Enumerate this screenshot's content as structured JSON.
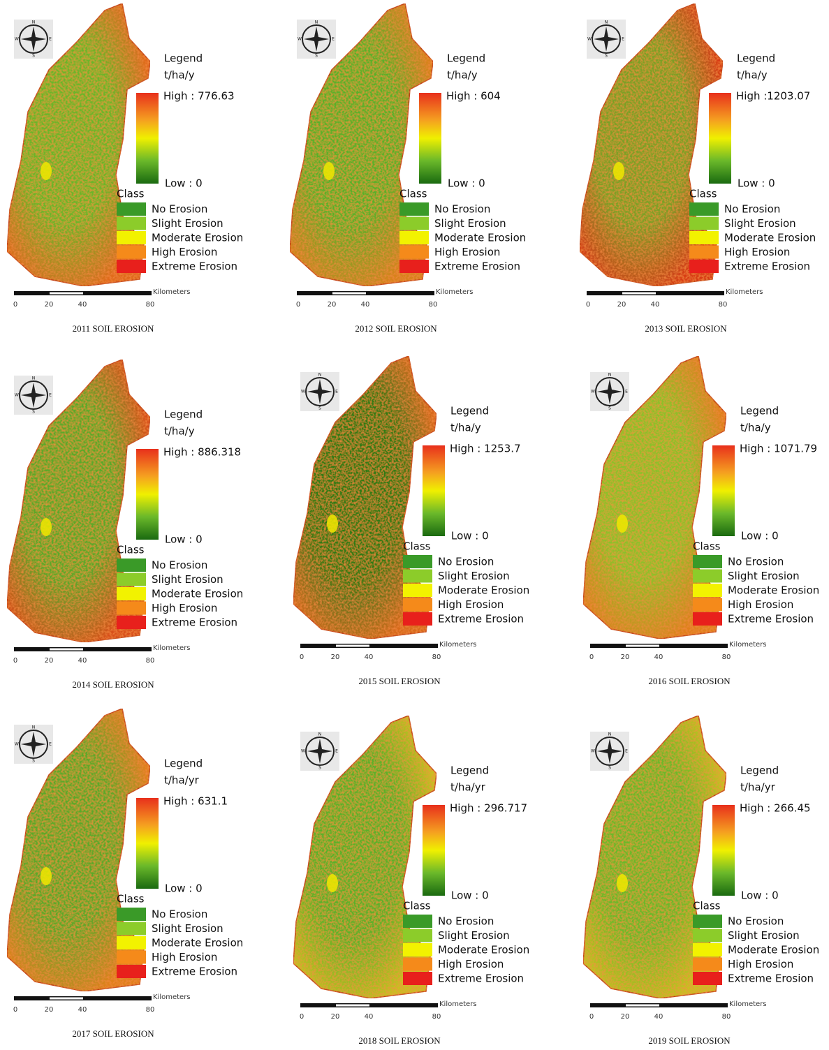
{
  "panels": [
    {
      "compass": [
        "N",
        "E",
        "S",
        "W"
      ],
      "legend_title": "Legend",
      "unit": "t/ha/y",
      "high": "High : 776.63",
      "low": "Low : 0",
      "class_title": "Class",
      "classes": [
        "No Erosion",
        "Slight Erosion",
        "Moderate Erosion",
        "High Erosion",
        "Extreme Erosion"
      ],
      "scale_unit": "Kilometers",
      "scale_ticks": [
        "0",
        "20",
        "40",
        "80"
      ],
      "caption": "2011 SOIL EROSION"
    },
    {
      "compass": [
        "N",
        "E",
        "S",
        "W"
      ],
      "legend_title": "Legend",
      "unit": "t/ha/y",
      "high": "High : 604",
      "low": "Low : 0",
      "class_title": "Class",
      "classes": [
        "No Erosion",
        "Slight Erosion",
        "Moderate Erosion",
        "High Erosion",
        "Extreme Erosion"
      ],
      "scale_unit": "Kilometers",
      "scale_ticks": [
        "0",
        "20",
        "40",
        "80"
      ],
      "caption": "2012 SOIL EROSION"
    },
    {
      "compass": [
        "N",
        "E",
        "S",
        "W"
      ],
      "legend_title": "Legend",
      "unit": "t/ha/y",
      "high": "High :1203.07",
      "low": "Low : 0",
      "class_title": "Class",
      "classes": [
        "No Erosion",
        "Slight Erosion",
        "Moderate Erosion",
        "High Erosion",
        "Extreme Erosion"
      ],
      "scale_unit": "Kilometers",
      "scale_ticks": [
        "0",
        "20",
        "40",
        "80"
      ],
      "caption": "2013 SOIL EROSION"
    },
    {
      "compass": [
        "N",
        "E",
        "S",
        "W"
      ],
      "legend_title": "Legend",
      "unit": "t/ha/y",
      "high": "High : 886.318",
      "low": "Low : 0",
      "class_title": "Class",
      "classes": [
        "No Erosion",
        "Slight Erosion",
        "Moderate Erosion",
        "High Erosion",
        "Extreme Erosion"
      ],
      "scale_unit": "Kilometers",
      "scale_ticks": [
        "0",
        "20",
        "40",
        "80"
      ],
      "caption": "2014 SOIL EROSION"
    },
    {
      "compass": [
        "N",
        "E",
        "S",
        "W"
      ],
      "legend_title": "Legend",
      "unit": "t/ha/y",
      "high": "High : 1253.7",
      "low": "Low : 0",
      "class_title": "Class",
      "classes": [
        "No Erosion",
        "Slight Erosion",
        "Moderate Erosion",
        "High Erosion",
        "Extreme Erosion"
      ],
      "scale_unit": "Kilometers",
      "scale_ticks": [
        "0",
        "20",
        "40",
        "80"
      ],
      "caption": "2015 SOIL EROSION"
    },
    {
      "compass": [
        "N",
        "E",
        "S",
        "W"
      ],
      "legend_title": "Legend",
      "unit": "t/ha/y",
      "high": "High : 1071.79",
      "low": "Low : 0",
      "class_title": "Class",
      "classes": [
        "No Erosion",
        "Slight Erosion",
        "Moderate Erosion",
        "High Erosion",
        "Extreme Erosion"
      ],
      "scale_unit": "Kilometers",
      "scale_ticks": [
        "0",
        "20",
        "40",
        "80"
      ],
      "caption": "2016 SOIL EROSION"
    },
    {
      "compass": [
        "N",
        "E",
        "S",
        "W"
      ],
      "legend_title": "Legend",
      "unit": "t/ha/yr",
      "high": "High : 631.1",
      "low": "Low : 0",
      "class_title": "Class",
      "classes": [
        "No Erosion",
        "Slight Erosion",
        "Moderate Erosion",
        "High Erosion",
        "Extreme Erosion"
      ],
      "scale_unit": "Kilometers",
      "scale_ticks": [
        "0",
        "20",
        "40",
        "80"
      ],
      "caption": "2017 SOIL EROSION"
    },
    {
      "compass": [
        "N",
        "E",
        "S",
        "W"
      ],
      "legend_title": "Legend",
      "unit": "t/ha/yr",
      "high": "High : 296.717",
      "low": "Low : 0",
      "class_title": "Class",
      "classes": [
        "No Erosion",
        "Slight Erosion",
        "Moderate Erosion",
        "High Erosion",
        "Extreme Erosion"
      ],
      "scale_unit": "Kilometers",
      "scale_ticks": [
        "0",
        "20",
        "40",
        "80"
      ],
      "caption": "2018 SOIL EROSION"
    },
    {
      "compass": [
        "N",
        "E",
        "S",
        "W"
      ],
      "legend_title": "Legend",
      "unit": "t/ha/yr",
      "high": "High : 266.45",
      "low": "Low : 0",
      "class_title": "Class",
      "classes": [
        "No Erosion",
        "Slight Erosion",
        "Moderate Erosion",
        "High Erosion",
        "Extreme Erosion"
      ],
      "scale_unit": "Kilometers",
      "scale_ticks": [
        "0",
        "20",
        "40",
        "80"
      ],
      "caption": "2019 SOIL EROSION"
    }
  ]
}
